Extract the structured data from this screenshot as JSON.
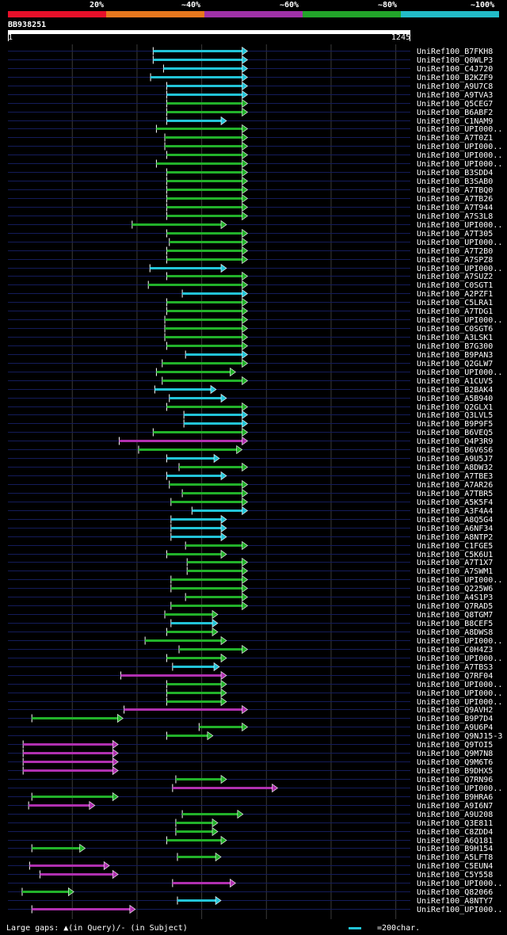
{
  "legend": {
    "labels": [
      "20%",
      "~40%",
      "~60%",
      "~80%",
      "~100%"
    ],
    "colors": [
      "#e8102a",
      "#e8781e",
      "#a031a8",
      "#22a52a",
      "#22bcc8"
    ]
  },
  "query": {
    "id": "BB938251",
    "start": "1",
    "end": "1245"
  },
  "footer": {
    "gaps_text": "Large gaps: ▲(in Query)/- (in Subject)",
    "scale_text": "=200char."
  },
  "hits": [
    {
      "name": "UniRef100_B7FKH8",
      "color": "cyan",
      "start": 450,
      "end": 737
    },
    {
      "name": "UniRef100_Q0WLP3",
      "color": "cyan",
      "start": 450,
      "end": 737
    },
    {
      "name": "UniRef100_C4J720",
      "color": "cyan",
      "start": 482,
      "end": 737
    },
    {
      "name": "UniRef100_B2KZF9",
      "color": "cyan",
      "start": 442,
      "end": 737
    },
    {
      "name": "UniRef100_A9U7C8",
      "color": "cyan",
      "start": 492,
      "end": 737
    },
    {
      "name": "UniRef100_A9TVA3",
      "color": "cyan",
      "start": 492,
      "end": 737
    },
    {
      "name": "UniRef100_Q5CEG7",
      "color": "green",
      "start": 492,
      "end": 737
    },
    {
      "name": "UniRef100_B6ABF2",
      "color": "green",
      "start": 492,
      "end": 737
    },
    {
      "name": "UniRef100_C1NAM9",
      "color": "cyan",
      "start": 492,
      "end": 672
    },
    {
      "name": "UniRef100_UPI000..",
      "color": "green",
      "start": 460,
      "end": 737
    },
    {
      "name": "UniRef100_A7T0Z1",
      "color": "green",
      "start": 486,
      "end": 737
    },
    {
      "name": "UniRef100_UPI000..",
      "color": "green",
      "start": 486,
      "end": 737
    },
    {
      "name": "UniRef100_UPI000..",
      "color": "green",
      "start": 492,
      "end": 737
    },
    {
      "name": "UniRef100_UPI000..",
      "color": "green",
      "start": 460,
      "end": 737
    },
    {
      "name": "UniRef100_B3SDD4",
      "color": "green",
      "start": 492,
      "end": 737
    },
    {
      "name": "UniRef100_B3SAB0",
      "color": "green",
      "start": 492,
      "end": 737
    },
    {
      "name": "UniRef100_A7TBQ0",
      "color": "green",
      "start": 492,
      "end": 737
    },
    {
      "name": "UniRef100_A7TB26",
      "color": "green",
      "start": 492,
      "end": 737
    },
    {
      "name": "UniRef100_A7T944",
      "color": "green",
      "start": 492,
      "end": 737
    },
    {
      "name": "UniRef100_A7S3L8",
      "color": "green",
      "start": 492,
      "end": 737
    },
    {
      "name": "UniRef100_UPI000..",
      "color": "green",
      "start": 385,
      "end": 672
    },
    {
      "name": "UniRef100_A7T305",
      "color": "green",
      "start": 492,
      "end": 737
    },
    {
      "name": "UniRef100_UPI000..",
      "color": "green",
      "start": 500,
      "end": 737
    },
    {
      "name": "UniRef100_A7T2B0",
      "color": "green",
      "start": 492,
      "end": 737
    },
    {
      "name": "UniRef100_A7SPZ8",
      "color": "green",
      "start": 492,
      "end": 737
    },
    {
      "name": "UniRef100_UPI000..",
      "color": "cyan",
      "start": 440,
      "end": 672
    },
    {
      "name": "UniRef100_A7SUZ2",
      "color": "green",
      "start": 492,
      "end": 737
    },
    {
      "name": "UniRef100_C0SGT1",
      "color": "green",
      "start": 435,
      "end": 737
    },
    {
      "name": "UniRef100_A2PZF1",
      "color": "cyan",
      "start": 540,
      "end": 737
    },
    {
      "name": "UniRef100_C5LRA1",
      "color": "green",
      "start": 492,
      "end": 737
    },
    {
      "name": "UniRef100_A7TDG1",
      "color": "green",
      "start": 492,
      "end": 737
    },
    {
      "name": "UniRef100_UPI000..",
      "color": "green",
      "start": 486,
      "end": 737
    },
    {
      "name": "UniRef100_C0SGT6",
      "color": "green",
      "start": 486,
      "end": 737
    },
    {
      "name": "UniRef100_A3LSK1",
      "color": "green",
      "start": 486,
      "end": 737
    },
    {
      "name": "UniRef100_B7G300",
      "color": "green",
      "start": 492,
      "end": 737
    },
    {
      "name": "UniRef100_B9PAN3",
      "color": "cyan",
      "start": 550,
      "end": 737
    },
    {
      "name": "UniRef100_Q2GLW7",
      "color": "green",
      "start": 478,
      "end": 737
    },
    {
      "name": "UniRef100_UPI000..",
      "color": "green",
      "start": 460,
      "end": 700
    },
    {
      "name": "UniRef100_A1CUV5",
      "color": "green",
      "start": 478,
      "end": 737
    },
    {
      "name": "UniRef100_B2BAK4",
      "color": "cyan",
      "start": 455,
      "end": 640
    },
    {
      "name": "UniRef100_A5B940",
      "color": "cyan",
      "start": 500,
      "end": 672
    },
    {
      "name": "UniRef100_Q2GLX1",
      "color": "green",
      "start": 492,
      "end": 737
    },
    {
      "name": "UniRef100_Q3LVL5",
      "color": "cyan",
      "start": 545,
      "end": 737
    },
    {
      "name": "UniRef100_B9P9F5",
      "color": "cyan",
      "start": 545,
      "end": 737
    },
    {
      "name": "UniRef100_B6VEQ5",
      "color": "green",
      "start": 450,
      "end": 737
    },
    {
      "name": "UniRef100_Q4P3R9",
      "color": "magenta",
      "start": 345,
      "end": 737
    },
    {
      "name": "UniRef100_B6V6S6",
      "color": "green",
      "start": 405,
      "end": 720
    },
    {
      "name": "UniRef100_A9U5J7",
      "color": "cyan",
      "start": 492,
      "end": 650
    },
    {
      "name": "UniRef100_A8DW32",
      "color": "green",
      "start": 530,
      "end": 737
    },
    {
      "name": "UniRef100_A7TBE3",
      "color": "cyan",
      "start": 492,
      "end": 672
    },
    {
      "name": "UniRef100_A7AR26",
      "color": "green",
      "start": 500,
      "end": 737
    },
    {
      "name": "UniRef100_A7TBR5",
      "color": "green",
      "start": 540,
      "end": 737
    },
    {
      "name": "UniRef100_A5K5F4",
      "color": "green",
      "start": 505,
      "end": 737
    },
    {
      "name": "UniRef100_A3F4A4",
      "color": "cyan",
      "start": 570,
      "end": 737
    },
    {
      "name": "UniRef100_A8Q5G4",
      "color": "cyan",
      "start": 505,
      "end": 672
    },
    {
      "name": "UniRef100_A6NF34",
      "color": "cyan",
      "start": 505,
      "end": 672
    },
    {
      "name": "UniRef100_A8NTP2",
      "color": "cyan",
      "start": 505,
      "end": 672
    },
    {
      "name": "UniRef100_C1FGE5",
      "color": "green",
      "start": 550,
      "end": 737
    },
    {
      "name": "UniRef100_C5K6U1",
      "color": "green",
      "start": 492,
      "end": 672
    },
    {
      "name": "UniRef100_A7T1X7",
      "color": "green",
      "start": 555,
      "end": 737
    },
    {
      "name": "UniRef100_A7SWM1",
      "color": "green",
      "start": 555,
      "end": 737
    },
    {
      "name": "UniRef100_UPI000..",
      "color": "green",
      "start": 505,
      "end": 737
    },
    {
      "name": "UniRef100_Q225W6",
      "color": "green",
      "start": 505,
      "end": 737
    },
    {
      "name": "UniRef100_A4S1P3",
      "color": "green",
      "start": 550,
      "end": 737
    },
    {
      "name": "UniRef100_Q7RAD5",
      "color": "green",
      "start": 505,
      "end": 737
    },
    {
      "name": "UniRef100_Q8TGM7",
      "color": "green",
      "start": 486,
      "end": 645
    },
    {
      "name": "UniRef100_B8CEF5",
      "color": "cyan",
      "start": 505,
      "end": 645
    },
    {
      "name": "UniRef100_A8DWS8",
      "color": "green",
      "start": 492,
      "end": 645
    },
    {
      "name": "UniRef100_UPI000..",
      "color": "green",
      "start": 425,
      "end": 672
    },
    {
      "name": "UniRef100_C0H4Z3",
      "color": "green",
      "start": 530,
      "end": 737
    },
    {
      "name": "UniRef100_UPI000..",
      "color": "green",
      "start": 492,
      "end": 672
    },
    {
      "name": "UniRef100_A7TBS3",
      "color": "cyan",
      "start": 510,
      "end": 650
    },
    {
      "name": "UniRef100_Q7RF04",
      "color": "magenta",
      "start": 350,
      "end": 672
    },
    {
      "name": "UniRef100_UPI000..",
      "color": "green",
      "start": 492,
      "end": 672
    },
    {
      "name": "UniRef100_UPI000..",
      "color": "green",
      "start": 492,
      "end": 672
    },
    {
      "name": "UniRef100_UPI000..",
      "color": "green",
      "start": 492,
      "end": 672
    },
    {
      "name": "UniRef100_Q9AVH2",
      "color": "magenta",
      "start": 360,
      "end": 737
    },
    {
      "name": "UniRef100_B9P7D4",
      "color": "green",
      "start": 75,
      "end": 352
    },
    {
      "name": "UniRef100_A9U6P4",
      "color": "green",
      "start": 592,
      "end": 737
    },
    {
      "name": "UniRef100_Q9NJ15-3",
      "color": "green",
      "start": 492,
      "end": 630
    },
    {
      "name": "UniRef100_Q9TOI5",
      "color": "magenta",
      "start": 48,
      "end": 337
    },
    {
      "name": "UniRef100_Q9M7N8",
      "color": "magenta",
      "start": 48,
      "end": 337
    },
    {
      "name": "UniRef100_Q9M6T6",
      "color": "magenta",
      "start": 48,
      "end": 337
    },
    {
      "name": "UniRef100_B9DHX5",
      "color": "magenta",
      "start": 48,
      "end": 337
    },
    {
      "name": "UniRef100_Q7RN96",
      "color": "green",
      "start": 520,
      "end": 672
    },
    {
      "name": "UniRef100_UPI000..",
      "color": "magenta",
      "start": 510,
      "end": 830
    },
    {
      "name": "UniRef100_B9HRA6",
      "color": "green",
      "start": 75,
      "end": 337
    },
    {
      "name": "UniRef100_A9I6N7",
      "color": "magenta",
      "start": 65,
      "end": 265
    },
    {
      "name": "UniRef100_A9U208",
      "color": "green",
      "start": 540,
      "end": 723
    },
    {
      "name": "UniRef100_Q3E811",
      "color": "green",
      "start": 520,
      "end": 645
    },
    {
      "name": "UniRef100_C8ZDD4",
      "color": "green",
      "start": 520,
      "end": 645
    },
    {
      "name": "UniRef100_A6Q181",
      "color": "green",
      "start": 492,
      "end": 672
    },
    {
      "name": "UniRef100_B9H154",
      "color": "green",
      "start": 75,
      "end": 235
    },
    {
      "name": "UniRef100_A5LFT8",
      "color": "green",
      "start": 525,
      "end": 655
    },
    {
      "name": "UniRef100_C5EUN4",
      "color": "magenta",
      "start": 68,
      "end": 310
    },
    {
      "name": "UniRef100_C5Y558",
      "color": "magenta",
      "start": 100,
      "end": 337
    },
    {
      "name": "UniRef100_UPI000..",
      "color": "magenta",
      "start": 510,
      "end": 700
    },
    {
      "name": "UniRef100_Q82066",
      "color": "green",
      "start": 45,
      "end": 200
    },
    {
      "name": "UniRef100_A8NTY7",
      "color": "cyan",
      "start": 525,
      "end": 655
    },
    {
      "name": "UniRef100_UPI000..",
      "color": "magenta",
      "start": 75,
      "end": 390
    }
  ]
}
